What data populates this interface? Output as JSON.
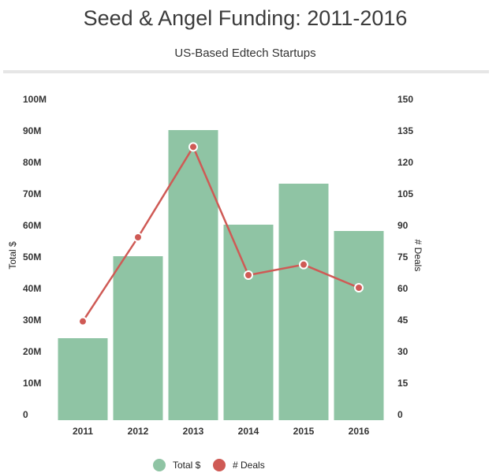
{
  "header": {
    "title": "Seed & Angel Funding: 2011-2016",
    "subtitle": "US-Based Edtech Startups"
  },
  "colors": {
    "bar": "#8fc4a4",
    "line": "#cf5a55"
  },
  "chart_data": {
    "type": "bar+line",
    "title": "Seed & Angel Funding: 2011-2016",
    "subtitle": "US-Based Edtech Startups",
    "categories": [
      "2011",
      "2012",
      "2013",
      "2014",
      "2015",
      "2016"
    ],
    "series": [
      {
        "name": "Total $",
        "type": "bar",
        "axis": "left",
        "values": [
          26000000,
          52000000,
          92000000,
          62000000,
          75000000,
          60000000
        ]
      },
      {
        "name": "# Deals",
        "type": "line",
        "axis": "right",
        "values": [
          47,
          87,
          130,
          69,
          74,
          63
        ]
      }
    ],
    "ylabel": "Total $",
    "y2label": "# Deals",
    "ylim": [
      0,
      100000000
    ],
    "y2lim": [
      0,
      150
    ],
    "yticks": [
      "0",
      "10M",
      "20M",
      "30M",
      "40M",
      "50M",
      "60M",
      "70M",
      "80M",
      "90M",
      "100M"
    ],
    "y2ticks": [
      "0",
      "15",
      "30",
      "45",
      "60",
      "75",
      "90",
      "105",
      "120",
      "135",
      "150"
    ],
    "grid": false,
    "legend": "bottom-center"
  }
}
